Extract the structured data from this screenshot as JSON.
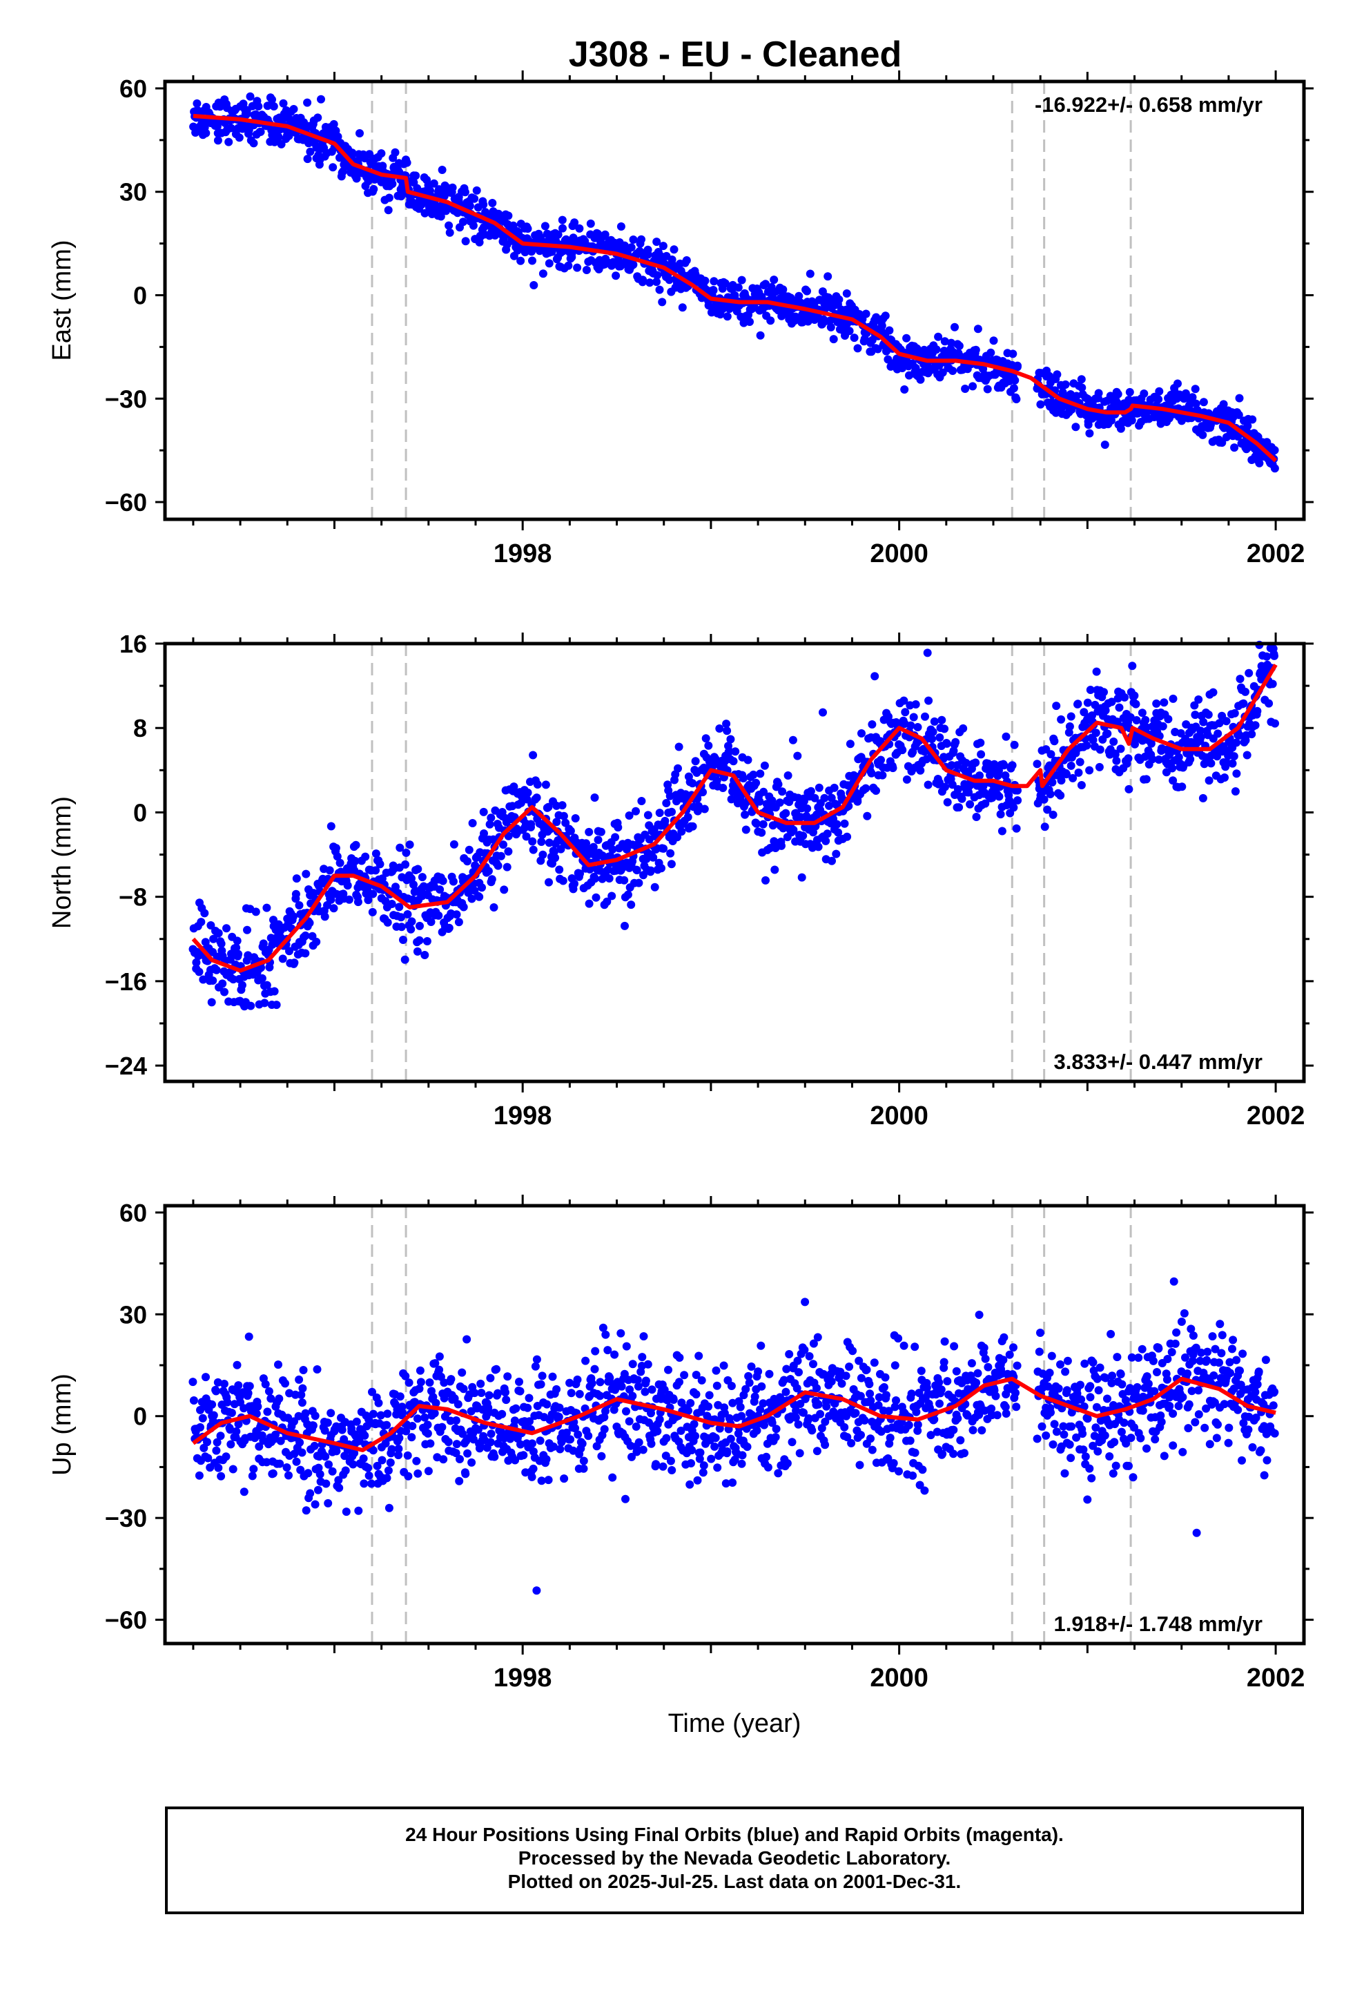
{
  "title": "J308  - EU - Cleaned",
  "footer": {
    "line1": "24 Hour Positions Using Final Orbits (blue) and Rapid Orbits (magenta).",
    "line2": "Processed by the Nevada Geodetic Laboratory.",
    "line3": "Plotted on 2025-Jul-25. Last data on 2001-Dec-31."
  },
  "colors": {
    "points": "#0000ff",
    "model": "#ff0000",
    "events": "#c0c0c0"
  },
  "chart_data": [
    {
      "type": "scatter",
      "ylabel": "East (mm)",
      "xlabel": "",
      "xlim": [
        1996.1,
        2002.15
      ],
      "ylim": [
        -65,
        62
      ],
      "yticks": [
        -60,
        -30,
        0,
        30,
        60
      ],
      "xticks": [
        1998,
        2000,
        2002
      ],
      "rate_label": "-16.922+/- 0.658 mm/yr",
      "rate_position": "top-right",
      "event_lines": [
        1997.2,
        1997.38,
        2000.6,
        2000.77,
        2001.23
      ],
      "model": {
        "x": [
          1996.25,
          1996.5,
          1996.75,
          1997.0,
          1997.1,
          1997.25,
          1997.38,
          1997.39,
          1997.6,
          1997.85,
          1998.0,
          1998.25,
          1998.5,
          1998.75,
          1998.9,
          1999.0,
          1999.15,
          1999.3,
          1999.5,
          1999.75,
          1999.9,
          2000.0,
          2000.15,
          2000.3,
          2000.45,
          2000.6,
          2000.7,
          2000.85,
          2001.0,
          2001.1,
          2001.2,
          2001.23,
          2001.24,
          2001.4,
          2001.6,
          2001.75,
          2001.9,
          2002.0
        ],
        "y": [
          52,
          51,
          49,
          44,
          38,
          35,
          34,
          30,
          27,
          21,
          15,
          14,
          12,
          8,
          3,
          -1,
          -2,
          -2,
          -4,
          -7,
          -12,
          -17,
          -19,
          -19,
          -20,
          -22,
          -24,
          -30,
          -33,
          -34,
          -34,
          -33,
          -32,
          -33,
          -35,
          -37,
          -43,
          -48
        ]
      },
      "noise": 3.0
    },
    {
      "type": "scatter",
      "ylabel": "North (mm)",
      "xlabel": "",
      "xlim": [
        1996.1,
        2002.15
      ],
      "ylim": [
        -25.5,
        16
      ],
      "yticks": [
        -24,
        -16,
        -8,
        0,
        8,
        16
      ],
      "xticks": [
        1998,
        2000,
        2002
      ],
      "rate_label": "3.833+/- 0.447 mm/yr",
      "rate_position": "bottom-right",
      "event_lines": [
        1997.2,
        1997.38,
        2000.6,
        2000.77,
        2001.23
      ],
      "model": {
        "x": [
          1996.25,
          1996.35,
          1996.5,
          1996.65,
          1996.85,
          1997.0,
          1997.1,
          1997.25,
          1997.4,
          1997.6,
          1997.75,
          1997.9,
          1998.05,
          1998.2,
          1998.35,
          1998.5,
          1998.7,
          1998.85,
          1999.0,
          1999.12,
          1999.25,
          1999.4,
          1999.55,
          1999.7,
          1999.85,
          2000.0,
          2000.12,
          2000.25,
          2000.4,
          2000.5,
          2000.6,
          2000.68,
          2000.75,
          2000.76,
          2000.9,
          2001.05,
          2001.18,
          2001.22,
          2001.24,
          2001.35,
          2001.5,
          2001.65,
          2001.8,
          2001.9,
          2002.0
        ],
        "y": [
          -12,
          -14,
          -15,
          -14,
          -10,
          -6,
          -6,
          -7,
          -9,
          -8.5,
          -6,
          -2,
          0.5,
          -2,
          -5,
          -4.5,
          -3,
          0,
          4,
          3.5,
          0,
          -1,
          -1,
          0.5,
          5,
          8,
          7,
          4,
          3,
          3,
          2.5,
          2.5,
          4,
          2.5,
          6,
          8.5,
          8,
          6.5,
          8,
          7,
          6,
          6,
          8,
          11,
          14
        ]
      },
      "noise": 2.0
    },
    {
      "type": "scatter",
      "ylabel": "Up (mm)",
      "xlabel": "Time (year)",
      "xlim": [
        1996.1,
        2002.15
      ],
      "ylim": [
        -67,
        62
      ],
      "yticks": [
        -60,
        -30,
        0,
        30,
        60
      ],
      "xticks": [
        1998,
        2000,
        2002
      ],
      "rate_label": "1.918+/- 1.748 mm/yr",
      "rate_position": "bottom-right",
      "event_lines": [
        1997.2,
        1997.38,
        2000.6,
        2000.77,
        2001.23
      ],
      "model": {
        "x": [
          1996.25,
          1996.4,
          1996.55,
          1996.75,
          1997.0,
          1997.15,
          1997.3,
          1997.45,
          1997.6,
          1997.8,
          1998.05,
          1998.3,
          1998.5,
          1998.75,
          1999.0,
          1999.15,
          1999.3,
          1999.5,
          1999.7,
          1999.9,
          2000.1,
          2000.3,
          2000.45,
          2000.6,
          2000.75,
          2000.9,
          2001.05,
          2001.2,
          2001.35,
          2001.5,
          2001.7,
          2001.85,
          2002.0
        ],
        "y": [
          -8,
          -2,
          0,
          -5,
          -8,
          -10,
          -5,
          3,
          2,
          -2,
          -5,
          0,
          5,
          2,
          -2,
          -3,
          0,
          7,
          5,
          0,
          -1,
          3,
          9,
          11,
          6,
          3,
          0,
          2,
          5,
          11,
          8,
          3,
          1
        ]
      },
      "noise": 8.5
    }
  ]
}
